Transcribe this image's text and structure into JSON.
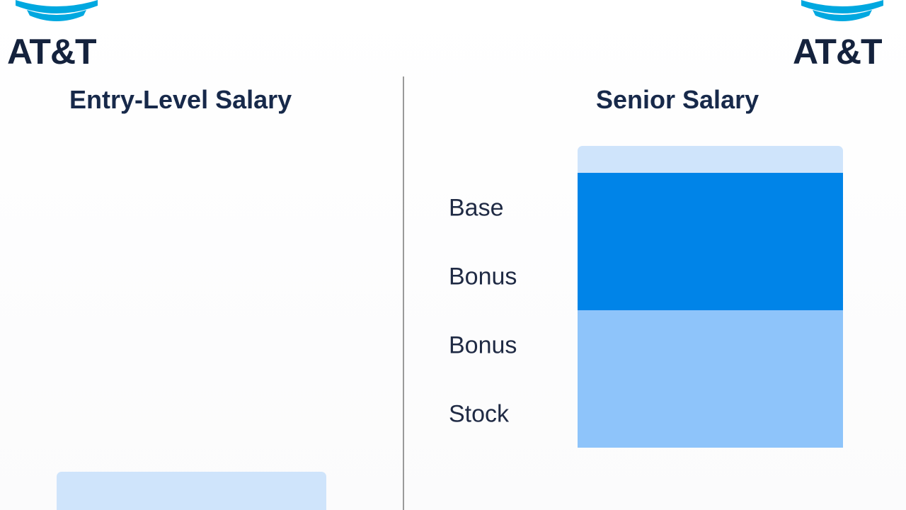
{
  "logo": {
    "left_text": "AT&T",
    "right_text": "AT&T",
    "brand_color": "#00A8E0"
  },
  "chart_data": [
    {
      "type": "bar",
      "title": "Entry-Level Salary",
      "categories": [],
      "values": [],
      "ylim": [
        0,
        1
      ]
    },
    {
      "type": "bar",
      "title": "Senior Salary",
      "categories": [
        "Base",
        "Bonus",
        "Bonus",
        "Stock"
      ],
      "series": [
        {
          "values": [
            1,
            1,
            1,
            1
          ]
        }
      ],
      "colors": [
        "#0084E8",
        "#0084E8",
        "#8EC4FA",
        "#8EC4FA"
      ],
      "cap_color": "#CFE4FB"
    }
  ]
}
